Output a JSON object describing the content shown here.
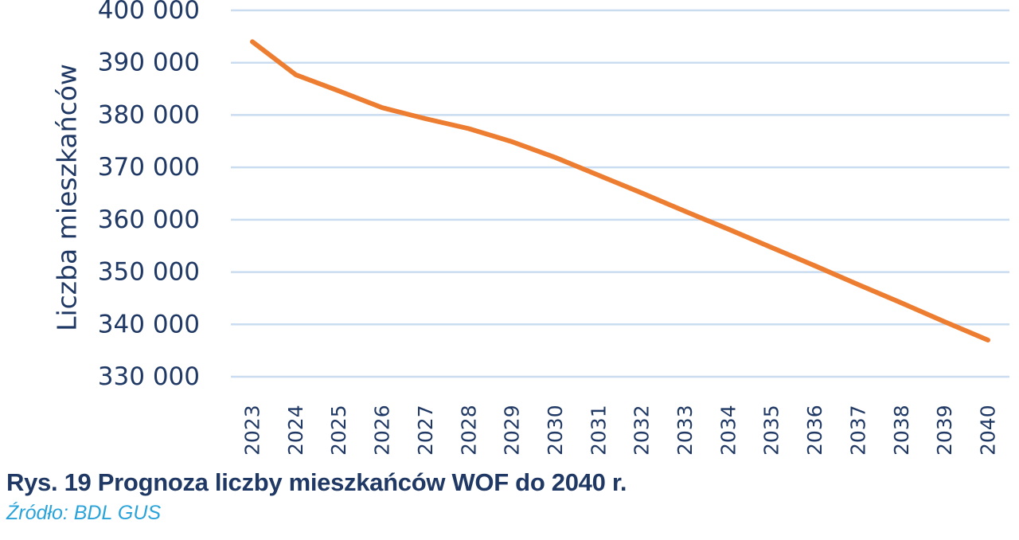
{
  "chart_data": {
    "type": "line",
    "ylabel": "Liczba mieszkańców",
    "xlabel": "",
    "ylim": [
      330000,
      400000
    ],
    "yticks": [
      330000,
      340000,
      350000,
      360000,
      370000,
      380000,
      390000,
      400000
    ],
    "ytick_labels": [
      "330 000",
      "340 000",
      "350 000",
      "360 000",
      "370 000",
      "380 000",
      "390 000",
      "400 000"
    ],
    "categories": [
      "2023",
      "2024",
      "2025",
      "2026",
      "2027",
      "2028",
      "2029",
      "2030",
      "2031",
      "2032",
      "2033",
      "2034",
      "2035",
      "2036",
      "2037",
      "2038",
      "2039",
      "2040"
    ],
    "series": [
      {
        "values": [
          394000,
          387700,
          384600,
          381400,
          379300,
          377400,
          374900,
          371900,
          368500,
          365100,
          361600,
          358200,
          354700,
          351200,
          347600,
          344100,
          340500,
          337000
        ],
        "color": "#ed7d31"
      }
    ],
    "grid": true,
    "legend": "none"
  },
  "caption": {
    "text": "Rys. 19 Prognoza liczby mieszkańców WOF do 2040 r."
  },
  "source": {
    "text": "Źródło: BDL GUS",
    "color": "#29a3d9"
  }
}
